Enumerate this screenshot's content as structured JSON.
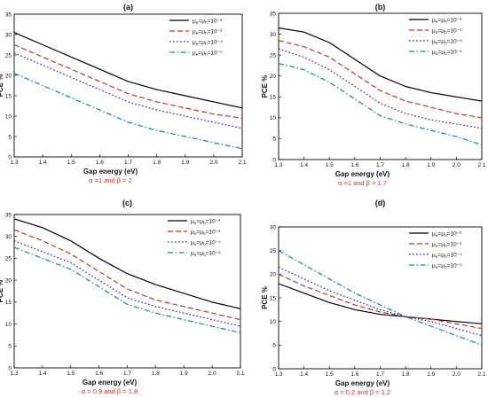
{
  "chart_data": [
    {
      "type": "line",
      "panel": "(a)",
      "params": "α =1 and β = 2",
      "xlabel": "Gap energy (eV)",
      "ylabel": "PCE %",
      "xlim": [
        1.3,
        2.1
      ],
      "ylim": [
        0,
        35
      ],
      "xticks": [
        "1.3",
        "1.4",
        "1.5",
        "1.6",
        "1.7",
        "1.8",
        "1.9",
        "2.0",
        "2.1"
      ],
      "yticks": [
        "0",
        "5",
        "10",
        "15",
        "20",
        "25",
        "30",
        "35"
      ],
      "legend_position": "top-right",
      "grid": false,
      "series": [
        {
          "name": "μe=μh=10⁻²",
          "color": "#000000",
          "dash": "solid",
          "x": [
            1.3,
            1.4,
            1.5,
            1.6,
            1.7,
            1.8,
            1.9,
            2.0,
            2.1
          ],
          "values": [
            30.5,
            27.5,
            24.5,
            21.5,
            18.5,
            16.5,
            15,
            13.5,
            12
          ]
        },
        {
          "name": "μe=μh=10⁻³",
          "color": "#c0392b",
          "dash": "dash",
          "x": [
            1.3,
            1.4,
            1.5,
            1.6,
            1.7,
            1.8,
            1.9,
            2.0,
            2.1
          ],
          "values": [
            27.5,
            24.5,
            21.5,
            18.5,
            15.5,
            13.5,
            12,
            10.5,
            9.5
          ]
        },
        {
          "name": "μe=μh=10⁻⁴",
          "color": "#1f1fcf",
          "dash": "dot",
          "x": [
            1.3,
            1.4,
            1.5,
            1.6,
            1.7,
            1.8,
            1.9,
            2.0,
            2.1
          ],
          "values": [
            25.5,
            22.5,
            19.5,
            16.5,
            13.5,
            11.5,
            10,
            8.5,
            7
          ]
        },
        {
          "name": "μe=μh=10⁻⁵",
          "color": "#138a8a",
          "dash": "dashdot",
          "x": [
            1.3,
            1.4,
            1.5,
            1.6,
            1.7,
            1.8,
            1.9,
            2.0,
            2.1
          ],
          "values": [
            20.5,
            17.5,
            14.5,
            11.5,
            8.5,
            6.5,
            5,
            3.5,
            2
          ]
        }
      ]
    },
    {
      "type": "line",
      "panel": "(b)",
      "params": "α =1 and β = 1.7",
      "xlabel": "Gap energy (eV)",
      "ylabel": "PCE %",
      "xlim": [
        1.3,
        2.1
      ],
      "ylim": [
        0,
        35
      ],
      "xticks": [
        "1.3",
        "1.4",
        "1.5",
        "1.6",
        "1.7",
        "1.8",
        "1.9",
        "2.0",
        "2.1"
      ],
      "yticks": [
        "0",
        "5",
        "10",
        "15",
        "20",
        "25",
        "30",
        "35"
      ],
      "legend_position": "top-right",
      "grid": false,
      "series": [
        {
          "name": "μe=μh=10⁻²",
          "color": "#000000",
          "dash": "solid",
          "x": [
            1.3,
            1.4,
            1.5,
            1.6,
            1.7,
            1.8,
            1.9,
            2.0,
            2.1
          ],
          "values": [
            31.5,
            30.5,
            28,
            24,
            20,
            17.5,
            16,
            15,
            14
          ]
        },
        {
          "name": "μe=μh=10⁻³",
          "color": "#c0392b",
          "dash": "dash",
          "x": [
            1.3,
            1.4,
            1.5,
            1.6,
            1.7,
            1.8,
            1.9,
            2.0,
            2.1
          ],
          "values": [
            28.5,
            27,
            24.5,
            20.5,
            16.5,
            14,
            12.5,
            11,
            10
          ]
        },
        {
          "name": "μe=μh=10⁻⁴",
          "color": "#1f1fcf",
          "dash": "dot",
          "x": [
            1.3,
            1.4,
            1.5,
            1.6,
            1.7,
            1.8,
            1.9,
            2.0,
            2.1
          ],
          "values": [
            26.5,
            24.5,
            21.5,
            17.5,
            13.5,
            11,
            9.5,
            8.5,
            7.5
          ]
        },
        {
          "name": "μe=μh=10⁻⁵",
          "color": "#138a8a",
          "dash": "dashdot",
          "x": [
            1.3,
            1.4,
            1.5,
            1.6,
            1.7,
            1.8,
            1.9,
            2.0,
            2.1
          ],
          "values": [
            23,
            21.5,
            18.5,
            14.5,
            10.5,
            8.5,
            7,
            5.5,
            3.5
          ]
        }
      ]
    },
    {
      "type": "line",
      "panel": "(c)",
      "params": "α = 0.9 and β = 1.8",
      "xlabel": "Gap energy (eV)",
      "ylabel": "PCE %",
      "xlim": [
        1.3,
        2.1
      ],
      "ylim": [
        0,
        35
      ],
      "xticks": [
        "1.3",
        "1.4",
        "1.5",
        "1.6",
        "1.7",
        "1.8",
        "1.9",
        "2.0",
        "2.1"
      ],
      "yticks": [
        "0",
        "5",
        "10",
        "15",
        "20",
        "25",
        "30",
        "35"
      ],
      "legend_position": "top-right",
      "grid": false,
      "series": [
        {
          "name": "μe=μh=10⁻²",
          "color": "#000000",
          "dash": "solid",
          "x": [
            1.3,
            1.4,
            1.5,
            1.6,
            1.7,
            1.8,
            1.9,
            2.0,
            2.1
          ],
          "values": [
            34,
            32,
            29,
            25,
            21.5,
            19,
            17,
            15,
            13.5
          ]
        },
        {
          "name": "μe=μh=10⁻³",
          "color": "#c0392b",
          "dash": "dash",
          "x": [
            1.3,
            1.4,
            1.5,
            1.6,
            1.7,
            1.8,
            1.9,
            2.0,
            2.1
          ],
          "values": [
            31.5,
            29,
            26,
            22,
            18,
            15.5,
            14,
            12.5,
            11
          ]
        },
        {
          "name": "μe=μh=10⁻⁴",
          "color": "#1f1fcf",
          "dash": "dot",
          "x": [
            1.3,
            1.4,
            1.5,
            1.6,
            1.7,
            1.8,
            1.9,
            2.0,
            2.1
          ],
          "values": [
            29,
            26.5,
            24,
            20,
            16,
            14,
            12.5,
            11,
            9.5
          ]
        },
        {
          "name": "μe=μh=10⁻⁵",
          "color": "#138a8a",
          "dash": "dashdot",
          "x": [
            1.3,
            1.4,
            1.5,
            1.6,
            1.7,
            1.8,
            1.9,
            2.0,
            2.1
          ],
          "values": [
            27.5,
            25,
            22.5,
            18.5,
            14.5,
            12.5,
            11,
            9.5,
            8
          ]
        }
      ]
    },
    {
      "type": "line",
      "panel": "(d)",
      "params": "α = 0.2 and β = 1.2",
      "xlabel": "Gap energy (eV)",
      "ylabel": "PCE %",
      "xlim": [
        1.3,
        2.1
      ],
      "ylim": [
        0,
        30
      ],
      "xticks": [
        "1.3",
        "1.4",
        "1.5",
        "1.6",
        "1.7",
        "1.8",
        "1.9",
        "2.0",
        "2.1"
      ],
      "yticks": [
        "0",
        "5",
        "10",
        "15",
        "20",
        "25",
        "30"
      ],
      "legend_position": "top-right",
      "grid": false,
      "series": [
        {
          "name": "μe=μh=10⁻²",
          "color": "#000000",
          "dash": "solid",
          "x": [
            1.3,
            1.4,
            1.5,
            1.6,
            1.7,
            1.8,
            1.9,
            2.0,
            2.1
          ],
          "values": [
            18,
            16,
            14,
            12.5,
            11.5,
            11,
            10.5,
            10,
            9.5
          ]
        },
        {
          "name": "μe=μh=10⁻³",
          "color": "#c0392b",
          "dash": "dash",
          "x": [
            1.3,
            1.4,
            1.5,
            1.6,
            1.7,
            1.8,
            1.9,
            2.0,
            2.1
          ],
          "values": [
            20,
            17.5,
            15.5,
            13.5,
            12,
            11,
            10.5,
            9.5,
            8.5
          ]
        },
        {
          "name": "μe=μh=10⁻⁴",
          "color": "#1f1fcf",
          "dash": "dot",
          "x": [
            1.3,
            1.4,
            1.5,
            1.6,
            1.7,
            1.8,
            1.9,
            2.0,
            2.1
          ],
          "values": [
            21.5,
            19,
            16.5,
            14.5,
            12.5,
            11,
            10,
            8.5,
            7
          ]
        },
        {
          "name": "μe=μh=10⁻⁵",
          "color": "#138a8a",
          "dash": "dashdot",
          "x": [
            1.3,
            1.4,
            1.5,
            1.6,
            1.7,
            1.8,
            1.9,
            2.0,
            2.1
          ],
          "values": [
            25,
            22,
            19,
            16,
            13.5,
            11,
            9,
            7,
            5
          ]
        }
      ]
    }
  ]
}
